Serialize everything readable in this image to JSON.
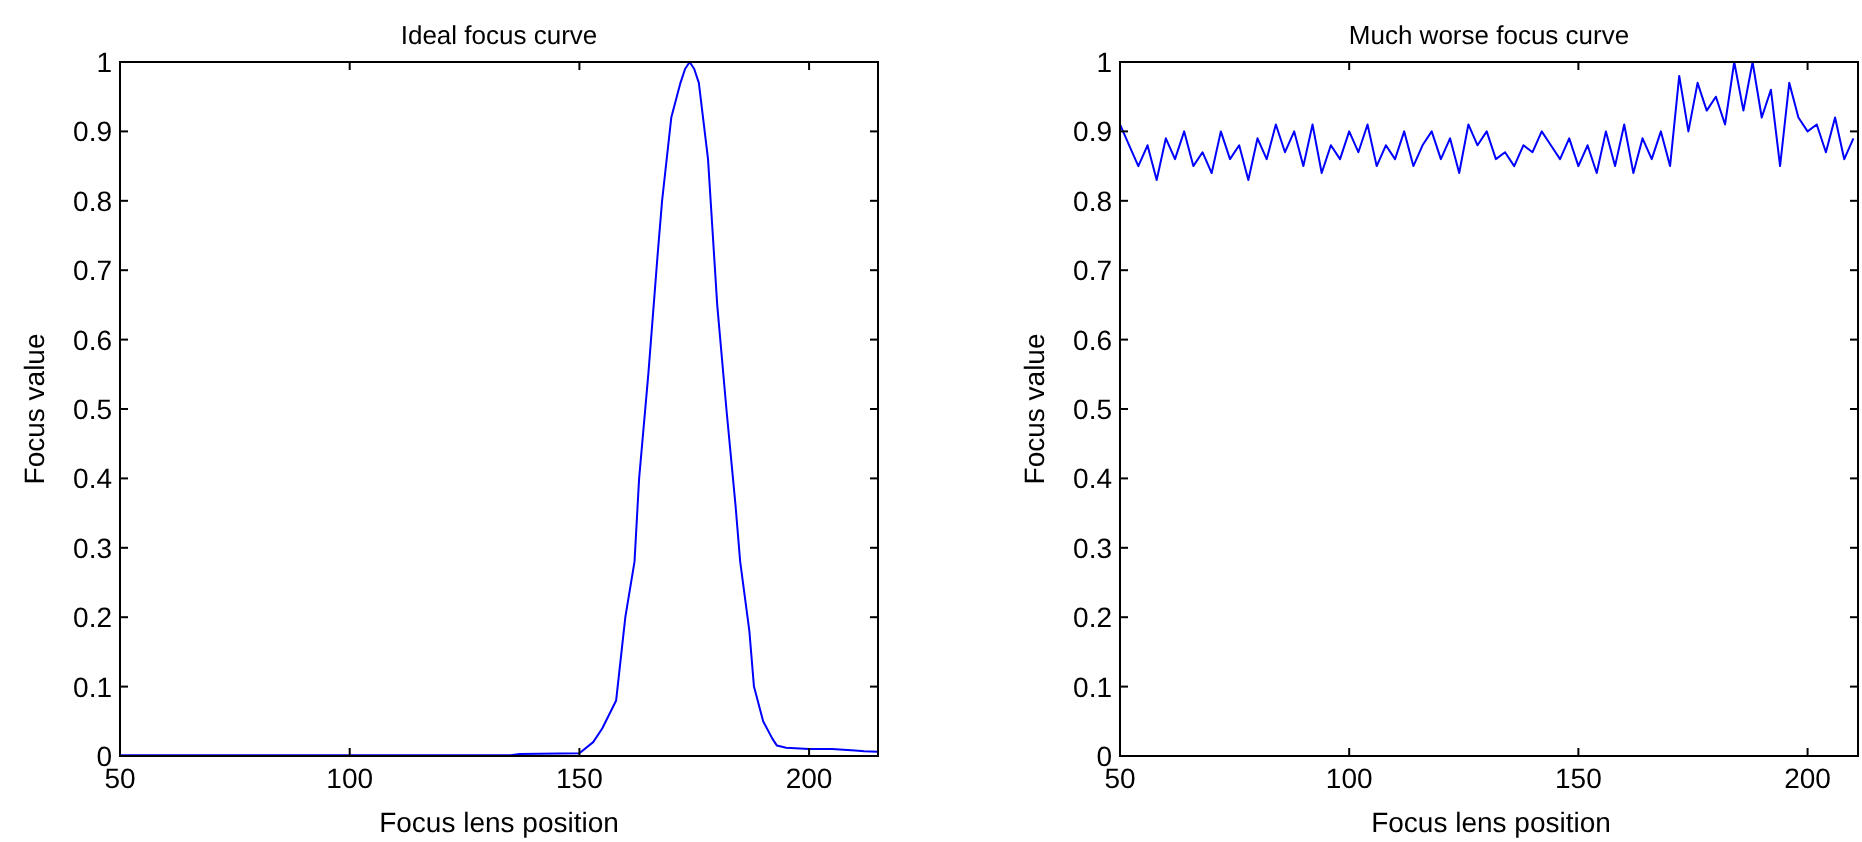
{
  "chart_data": [
    {
      "type": "line",
      "title": "Ideal focus curve",
      "xlabel": "Focus lens position",
      "ylabel": "Focus value",
      "xlim": [
        50,
        215
      ],
      "ylim": [
        0,
        1
      ],
      "xticks": [
        50,
        100,
        150,
        200
      ],
      "yticks": [
        0,
        0.1,
        0.2,
        0.3,
        0.4,
        0.5,
        0.6,
        0.7,
        0.8,
        0.9,
        1
      ],
      "series": [
        {
          "color": "#0000ff",
          "x": [
            50,
            80,
            110,
            135,
            137,
            150,
            153,
            155,
            158,
            160,
            162,
            163,
            165,
            167,
            168,
            170,
            172,
            173,
            174,
            175,
            176,
            178,
            180,
            182,
            184,
            185,
            187,
            188,
            190,
            192,
            193,
            195,
            200,
            205,
            210,
            212,
            215
          ],
          "values": [
            0.001,
            0.001,
            0.001,
            0.001,
            0.003,
            0.004,
            0.02,
            0.04,
            0.08,
            0.2,
            0.28,
            0.4,
            0.55,
            0.72,
            0.8,
            0.92,
            0.97,
            0.99,
            1.0,
            0.99,
            0.97,
            0.86,
            0.65,
            0.5,
            0.36,
            0.28,
            0.18,
            0.1,
            0.05,
            0.025,
            0.015,
            0.012,
            0.01,
            0.01,
            0.008,
            0.007,
            0.006
          ]
        }
      ]
    },
    {
      "type": "line",
      "title": "Much worse focus curve",
      "xlabel": "Focus lens position",
      "ylabel": "Focus value",
      "xlim": [
        50,
        211
      ],
      "ylim": [
        0,
        1
      ],
      "xticks": [
        50,
        100,
        150,
        200
      ],
      "yticks": [
        0,
        0.1,
        0.2,
        0.3,
        0.4,
        0.5,
        0.6,
        0.7,
        0.8,
        0.9,
        1
      ],
      "series": [
        {
          "color": "#0000ff",
          "x": [
            50,
            52,
            54,
            56,
            58,
            60,
            62,
            64,
            66,
            68,
            70,
            72,
            74,
            76,
            78,
            80,
            82,
            84,
            86,
            88,
            90,
            92,
            94,
            96,
            98,
            100,
            102,
            104,
            106,
            108,
            110,
            112,
            114,
            116,
            118,
            120,
            122,
            124,
            126,
            128,
            130,
            132,
            134,
            136,
            138,
            140,
            142,
            144,
            146,
            148,
            150,
            152,
            154,
            156,
            158,
            160,
            162,
            164,
            166,
            168,
            170,
            172,
            174,
            176,
            178,
            180,
            182,
            184,
            186,
            188,
            190,
            192,
            194,
            196,
            198,
            200,
            202,
            204,
            206,
            208,
            210
          ],
          "values": [
            0.91,
            0.88,
            0.85,
            0.88,
            0.83,
            0.89,
            0.86,
            0.9,
            0.85,
            0.87,
            0.84,
            0.9,
            0.86,
            0.88,
            0.83,
            0.89,
            0.86,
            0.91,
            0.87,
            0.9,
            0.85,
            0.91,
            0.84,
            0.88,
            0.86,
            0.9,
            0.87,
            0.91,
            0.85,
            0.88,
            0.86,
            0.9,
            0.85,
            0.88,
            0.9,
            0.86,
            0.89,
            0.84,
            0.91,
            0.88,
            0.9,
            0.86,
            0.87,
            0.85,
            0.88,
            0.87,
            0.9,
            0.88,
            0.86,
            0.89,
            0.85,
            0.88,
            0.84,
            0.9,
            0.85,
            0.91,
            0.84,
            0.89,
            0.86,
            0.9,
            0.85,
            0.98,
            0.9,
            0.97,
            0.93,
            0.95,
            0.91,
            1.0,
            0.93,
            1.0,
            0.92,
            0.96,
            0.85,
            0.97,
            0.92,
            0.9,
            0.91,
            0.87,
            0.92,
            0.86,
            0.89
          ]
        }
      ]
    }
  ]
}
